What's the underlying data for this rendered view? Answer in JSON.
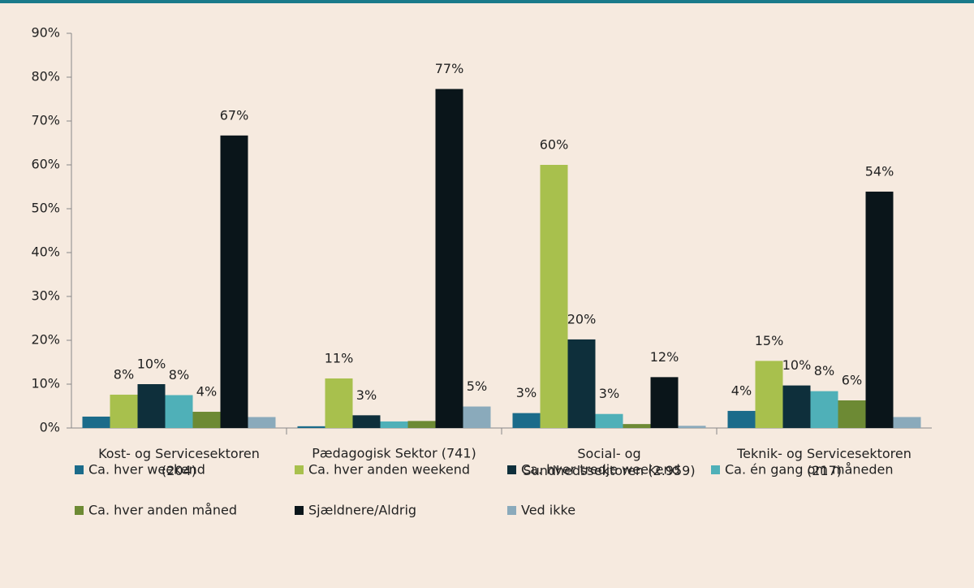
{
  "chart_data": {
    "type": "bar",
    "categories": [
      "Kost- og Servicesektoren\n(204)",
      "Pædagogisk Sektor (741)",
      "Social- og\nSundhedssektoren (2.959)",
      "Teknik- og Servicesektoren\n(217)"
    ],
    "series": [
      {
        "name": "Ca. hver weekend",
        "color": "#1b6b8a",
        "values": [
          2.6,
          0.4,
          3.4,
          3.9
        ],
        "value_labels": [
          null,
          null,
          "3%",
          "4%"
        ]
      },
      {
        "name": "Ca. hver anden weekend",
        "color": "#a8c04d",
        "values": [
          7.6,
          11.3,
          60,
          15.3
        ],
        "value_labels": [
          "8%",
          "11%",
          "60%",
          "15%"
        ]
      },
      {
        "name": "Ca. hver tredje weekend",
        "color": "#0e2f3b",
        "values": [
          10,
          2.9,
          20.2,
          9.7
        ],
        "value_labels": [
          "10%",
          "3%",
          "20%",
          "10%"
        ]
      },
      {
        "name": "Ca. én gang om måneden",
        "color": "#4fb0b8",
        "values": [
          7.5,
          1.5,
          3.2,
          8.4
        ],
        "value_labels": [
          "8%",
          null,
          "3%",
          "8%"
        ]
      },
      {
        "name": "Ca. hver anden måned",
        "color": "#6d8a34",
        "values": [
          3.7,
          1.6,
          0.9,
          6.3
        ],
        "value_labels": [
          "4%",
          null,
          null,
          "6%"
        ]
      },
      {
        "name": "Sjældnere/Aldrig",
        "color": "#0a151a",
        "values": [
          66.7,
          77.3,
          11.6,
          53.9
        ],
        "value_labels": [
          "67%",
          "77%",
          "12%",
          "54%"
        ]
      },
      {
        "name": "Ved ikke",
        "color": "#8aaabb",
        "values": [
          2.5,
          4.9,
          0.5,
          2.5
        ],
        "value_labels": [
          null,
          "5%",
          null,
          null
        ]
      }
    ],
    "ylim": [
      0,
      90
    ],
    "yticks": [
      {
        "value": 0,
        "label": "0%"
      },
      {
        "value": 10,
        "label": "10%"
      },
      {
        "value": 20,
        "label": "20%"
      },
      {
        "value": 30,
        "label": "30%"
      },
      {
        "value": 40,
        "label": "40%"
      },
      {
        "value": 50,
        "label": "50%"
      },
      {
        "value": 60,
        "label": "60%"
      },
      {
        "value": 70,
        "label": "70%"
      },
      {
        "value": 80,
        "label": "80%"
      },
      {
        "value": 90,
        "label": "90%"
      }
    ],
    "legend": "bottom"
  }
}
